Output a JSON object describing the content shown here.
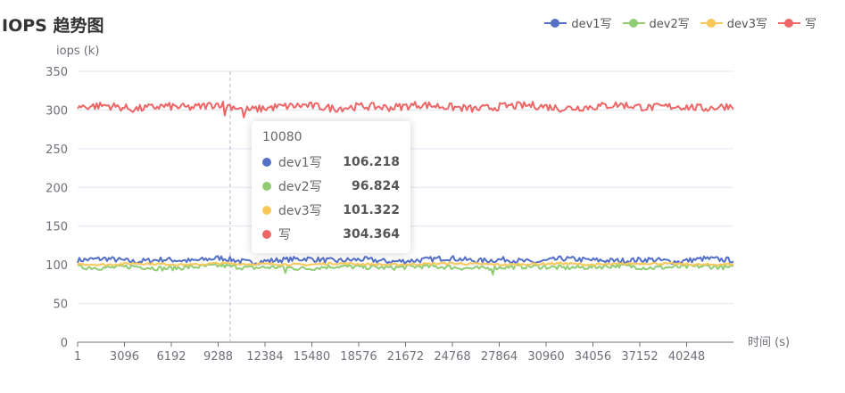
{
  "chart_data": {
    "type": "line",
    "title": "IOPS 趋势图",
    "ylabel": "iops (k)",
    "xlabel": "时间 (s)",
    "ylim": [
      0,
      350
    ],
    "yticks": [
      "0",
      "50",
      "100",
      "150",
      "200",
      "250",
      "300",
      "350"
    ],
    "xticks": [
      "1",
      "3096",
      "6192",
      "9288",
      "12384",
      "15480",
      "18576",
      "21672",
      "24768",
      "27864",
      "30960",
      "34056",
      "37152",
      "40248"
    ],
    "xlim": [
      1,
      43344
    ],
    "legend_position": "top-right",
    "grid": true,
    "series": [
      {
        "name": "dev1写",
        "color": "#5470c6",
        "mean": 106,
        "noise": 3.5,
        "values": [
          106,
          108,
          104,
          107,
          105,
          109,
          103,
          106,
          108,
          105,
          107,
          104,
          106,
          109,
          105,
          107,
          103,
          108,
          106,
          105,
          107,
          104,
          108,
          106
        ]
      },
      {
        "name": "dev2写",
        "color": "#91cc75",
        "mean": 97,
        "noise": 3.0,
        "values": [
          97,
          96,
          98,
          95,
          97,
          99,
          96,
          97,
          95,
          98,
          97,
          96,
          98,
          97,
          95,
          97,
          98,
          96,
          97,
          99,
          96,
          97,
          98,
          96
        ]
      },
      {
        "name": "dev3写",
        "color": "#fac858",
        "mean": 101,
        "noise": 1.5,
        "values": [
          101,
          100,
          102,
          101,
          100,
          102,
          101,
          101,
          100,
          102,
          101,
          100,
          101,
          102,
          101,
          100,
          101,
          102,
          100,
          101,
          102,
          101,
          100,
          101
        ]
      },
      {
        "name": "写",
        "color": "#ee6666",
        "mean": 304,
        "noise": 5.0,
        "values": [
          304,
          306,
          301,
          305,
          303,
          308,
          300,
          304,
          306,
          302,
          305,
          303,
          307,
          304,
          301,
          305,
          306,
          302,
          304,
          307,
          303,
          305,
          302,
          306
        ]
      }
    ],
    "tooltip": {
      "x": "10080",
      "rows": [
        {
          "name": "dev1写",
          "value": "106.218",
          "color": "#5470c6"
        },
        {
          "name": "dev2写",
          "value": "96.824",
          "color": "#91cc75"
        },
        {
          "name": "dev3写",
          "value": "101.322",
          "color": "#fac858"
        },
        {
          "name": "写",
          "value": "304.364",
          "color": "#ee6666"
        }
      ]
    }
  }
}
